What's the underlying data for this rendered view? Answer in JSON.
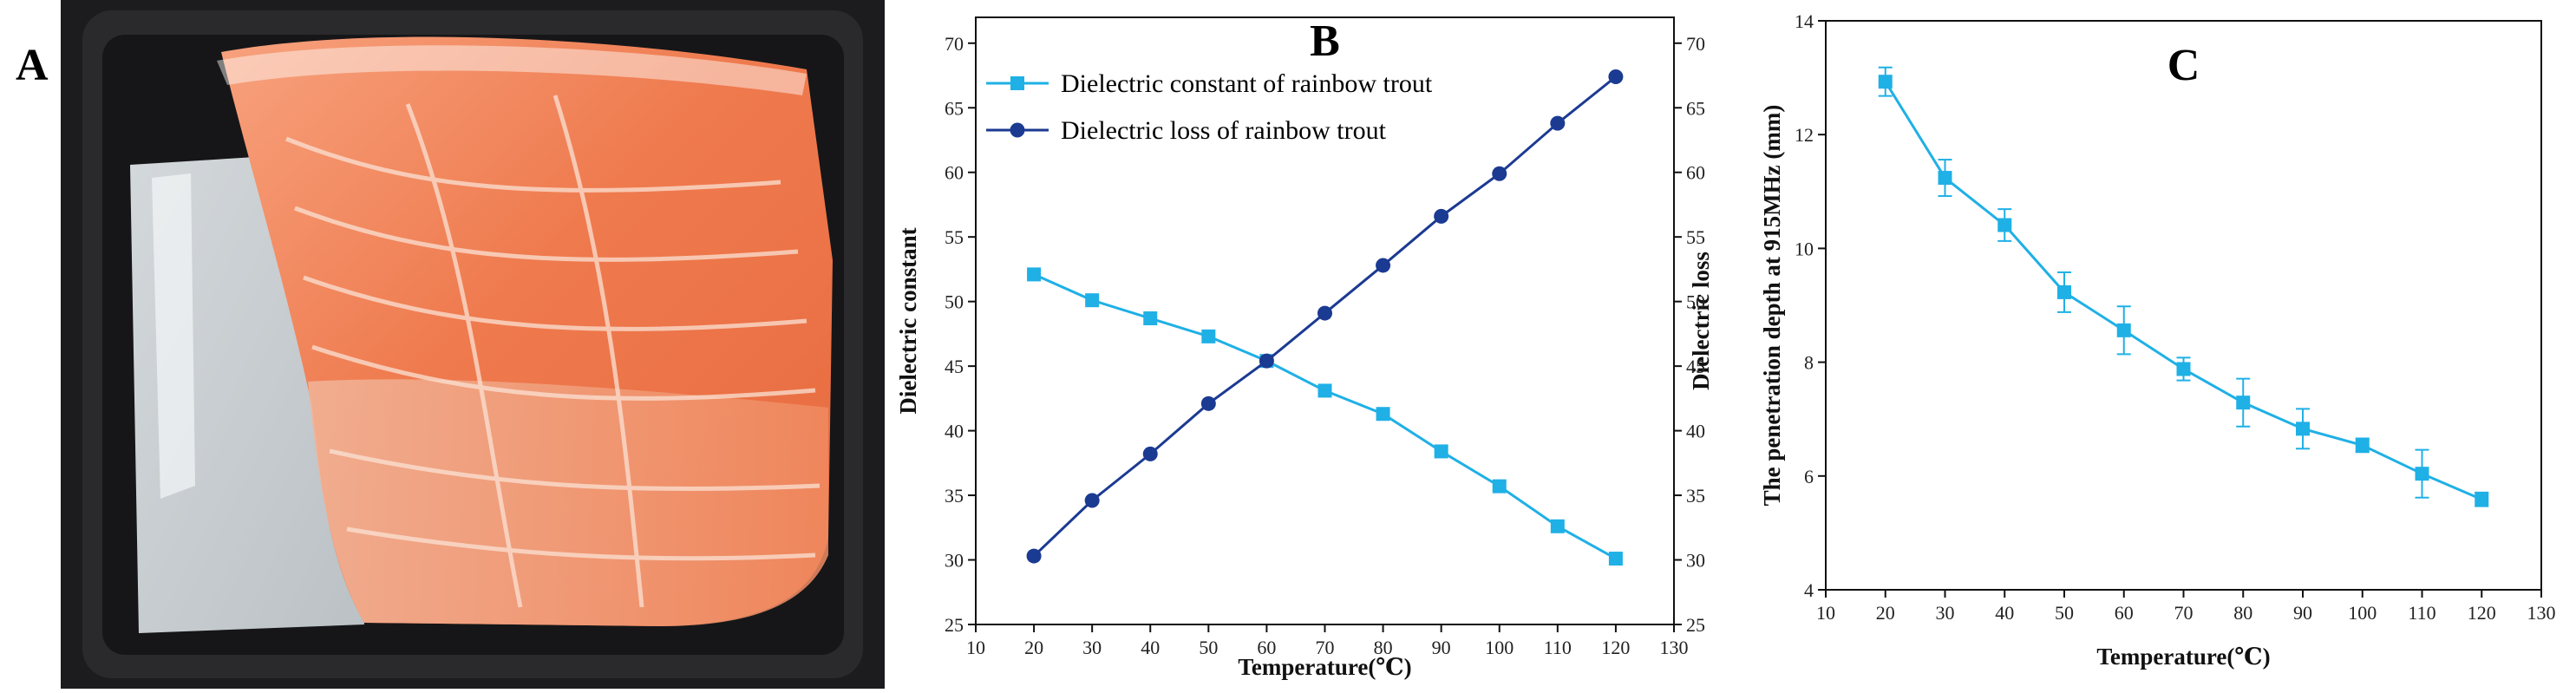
{
  "panel_labels": {
    "a": "A",
    "b": "B",
    "c": "C"
  },
  "photo": {
    "subject": "Vacuum-packed rainbow trout fillet in black tray"
  },
  "colors": {
    "light_series": "#1fb0e6",
    "dark_series": "#1b3a92",
    "axis": "#111111"
  },
  "chart_data": [
    {
      "id": "B",
      "type": "line",
      "title": "B",
      "xlabel": "Temperature(℃)",
      "ylabel_left": "Dielectric constant",
      "ylabel_right": "Dielectric loss",
      "xlim": [
        10,
        130
      ],
      "ylim": [
        25,
        72
      ],
      "xticks": [
        10,
        20,
        30,
        40,
        50,
        60,
        70,
        80,
        90,
        100,
        110,
        120,
        130
      ],
      "yticks": [
        25,
        30,
        35,
        40,
        45,
        50,
        55,
        60,
        65,
        70
      ],
      "legend_position": "top-left",
      "x": [
        20,
        30,
        40,
        50,
        60,
        70,
        80,
        90,
        100,
        110,
        120
      ],
      "series": [
        {
          "name": "Dielectric constant of rainbow trout",
          "axis": "left",
          "marker": "square",
          "color": "#1fb0e6",
          "values": [
            52.1,
            50.1,
            48.7,
            47.3,
            45.4,
            43.1,
            41.3,
            38.4,
            35.7,
            32.6,
            30.1
          ]
        },
        {
          "name": "Dielectric loss of rainbow trout",
          "axis": "right",
          "marker": "circle",
          "color": "#1b3a92",
          "values": [
            30.3,
            34.6,
            38.2,
            42.1,
            45.4,
            49.1,
            52.8,
            56.6,
            59.9,
            63.8,
            67.4
          ]
        }
      ]
    },
    {
      "id": "C",
      "type": "line",
      "title": "C",
      "xlabel": "Temperature(℃)",
      "ylabel": "The penetration depth at 915MHz (mm)",
      "xlim": [
        10,
        130
      ],
      "ylim": [
        4,
        14
      ],
      "xticks": [
        10,
        20,
        30,
        40,
        50,
        60,
        70,
        80,
        90,
        100,
        110,
        120,
        130
      ],
      "yticks": [
        4,
        6,
        8,
        10,
        12,
        14
      ],
      "x": [
        20,
        30,
        40,
        50,
        60,
        70,
        80,
        90,
        100,
        110,
        120
      ],
      "series": [
        {
          "name": "Penetration depth",
          "marker": "square",
          "color": "#1fb0e6",
          "values": [
            12.93,
            11.24,
            10.41,
            9.23,
            8.56,
            7.88,
            7.29,
            6.83,
            6.54,
            6.04,
            5.59
          ],
          "errors": [
            0.25,
            0.32,
            0.28,
            0.35,
            0.42,
            0.2,
            0.42,
            0.35,
            0.12,
            0.42,
            0.12
          ]
        }
      ]
    }
  ]
}
